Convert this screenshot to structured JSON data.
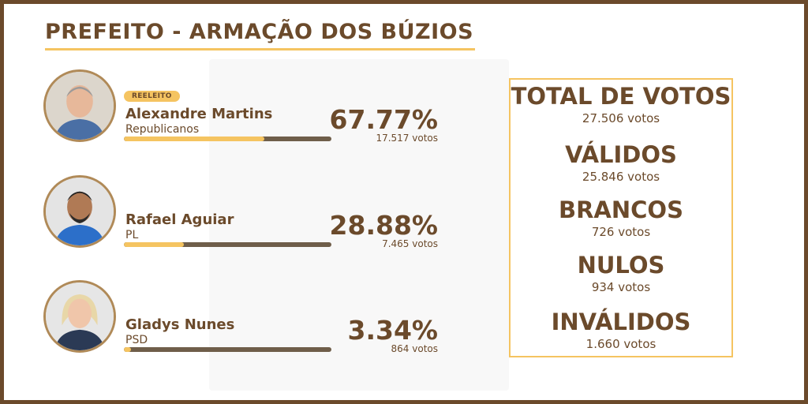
{
  "header": {
    "title": "PREFEITO - ARMAÇÃO DOS BÚZIOS"
  },
  "colors": {
    "brown": "#6b4a2b",
    "gold": "#f5c461",
    "bar_track": "#6f5e4a"
  },
  "candidates": [
    {
      "badge": "REELEITO",
      "name": "Alexandre Martins",
      "party": "Republicanos",
      "percent_text": "67.77%",
      "votes_text": "17.517 votos",
      "percent": 67.77
    },
    {
      "name": "Rafael Aguiar",
      "party": "PL",
      "percent_text": "28.88%",
      "votes_text": "7.465 votos",
      "percent": 28.88
    },
    {
      "name": "Gladys Nunes",
      "party": "PSD",
      "percent_text": "3.34%",
      "votes_text": "864 votos",
      "percent": 3.34
    }
  ],
  "totals": [
    {
      "label": "TOTAL DE VOTOS",
      "value": "27.506 votos"
    },
    {
      "label": "VÁLIDOS",
      "value": "25.846 votos"
    },
    {
      "label": "BRANCOS",
      "value": "726 votos"
    },
    {
      "label": "NULOS",
      "value": "934 votos"
    },
    {
      "label": "INVÁLIDOS",
      "value": "1.660 votos"
    }
  ]
}
